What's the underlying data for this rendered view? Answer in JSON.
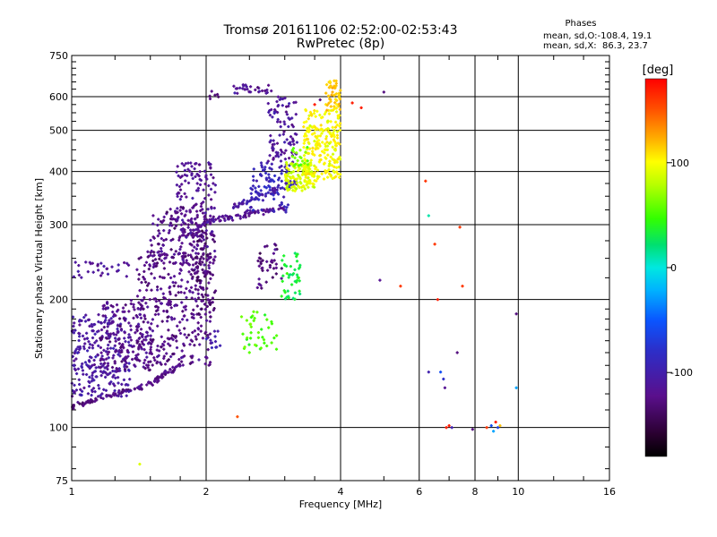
{
  "chart_data": {
    "type": "scatter",
    "title": "Tromsø 20161106 02:52:00-02:53:43",
    "subtitle": "RwPretec (8p)",
    "xlabel": "Frequency [MHz]",
    "ylabel": "Stationary phase Virtual Height [km]",
    "x_scale": "log",
    "y_scale": "log",
    "xlim": [
      1,
      16
    ],
    "ylim": [
      75,
      750
    ],
    "x_ticks": [
      1,
      2,
      4,
      6,
      8,
      10,
      16
    ],
    "x_tick_labels": [
      "1",
      "2",
      "4",
      "6",
      "8",
      "10",
      "16"
    ],
    "y_ticks": [
      75,
      100,
      200,
      300,
      400,
      500,
      600,
      750
    ],
    "y_tick_labels": [
      "75",
      "100",
      "200",
      "300",
      "400",
      "500",
      "600",
      "750"
    ],
    "grid": true,
    "x_gridlines": [
      2,
      4,
      6,
      8,
      10
    ],
    "y_gridlines": [
      100,
      200,
      300,
      400,
      500,
      600
    ],
    "phase_box": {
      "title": "Phases",
      "line1": "mean, sd,O:-108.4, 19.1",
      "line2": "mean, sd,X:  86.3, 23.7"
    },
    "colorbar": {
      "label": "[deg]",
      "range": [
        -180,
        180
      ],
      "ticks": [
        100,
        0,
        -100
      ],
      "tick_labels": [
        "100",
        "0",
        "-100"
      ],
      "colormap": "rainbow: black (-180) → purple → blue → cyan → green → yellow → orange → red (180)"
    },
    "traces": [
      {
        "kind": "curve",
        "phase": -130,
        "x0": 1.0,
        "x1": 1.45,
        "y0": 112,
        "y1": 125,
        "spread": 0.015,
        "count": 70
      },
      {
        "kind": "curve",
        "phase": -125,
        "x0": 1.45,
        "x1": 1.75,
        "y0": 125,
        "y1": 140,
        "spread": 0.02,
        "count": 50
      },
      {
        "kind": "cloud",
        "phase": -110,
        "xmin": 1.0,
        "xmax": 1.35,
        "ymin": 118,
        "ymax": 185,
        "count": 260
      },
      {
        "kind": "cloud",
        "phase": -125,
        "xmin": 1.15,
        "xmax": 1.5,
        "ymin": 135,
        "ymax": 200,
        "count": 160
      },
      {
        "kind": "cloud",
        "phase": -125,
        "xmin": 1.4,
        "xmax": 2.05,
        "ymin": 140,
        "ymax": 260,
        "count": 340
      },
      {
        "kind": "cloud",
        "phase": -125,
        "xmin": 1.5,
        "xmax": 2.1,
        "ymin": 240,
        "ymax": 330,
        "count": 160
      },
      {
        "kind": "cloud",
        "phase": -120,
        "xmin": 1.7,
        "xmax": 2.1,
        "ymin": 280,
        "ymax": 420,
        "count": 130
      },
      {
        "kind": "cloud",
        "phase": -135,
        "xmin": 1.85,
        "xmax": 2.1,
        "ymin": 180,
        "ymax": 290,
        "count": 90
      },
      {
        "kind": "cloud",
        "phase": -115,
        "xmin": 1.0,
        "xmax": 1.35,
        "ymin": 225,
        "ymax": 245,
        "count": 30
      },
      {
        "kind": "curve",
        "phase": -120,
        "x0": 2.0,
        "x1": 3.0,
        "y0": 305,
        "y1": 330,
        "spread": 0.02,
        "count": 80
      },
      {
        "kind": "curve",
        "phase": -105,
        "x0": 2.3,
        "x1": 3.2,
        "y0": 330,
        "y1": 380,
        "spread": 0.02,
        "count": 70
      },
      {
        "kind": "cloud",
        "phase": -90,
        "xmin": 2.5,
        "xmax": 3.1,
        "ymin": 320,
        "ymax": 420,
        "count": 90
      },
      {
        "kind": "cloud",
        "phase": -115,
        "xmin": 2.75,
        "xmax": 3.2,
        "ymin": 420,
        "ymax": 600,
        "count": 90
      },
      {
        "kind": "cloud",
        "phase": -120,
        "xmin": 2.3,
        "xmax": 2.8,
        "ymin": 610,
        "ymax": 640,
        "count": 30
      },
      {
        "kind": "cloud",
        "phase": -130,
        "xmin": 2.0,
        "xmax": 2.15,
        "ymin": 590,
        "ymax": 620,
        "count": 6
      },
      {
        "kind": "cloud",
        "phase": -130,
        "xmin": 2.6,
        "xmax": 3.0,
        "ymin": 210,
        "ymax": 270,
        "count": 40
      },
      {
        "kind": "cloud",
        "phase": -100,
        "xmin": 2.0,
        "xmax": 2.15,
        "ymin": 150,
        "ymax": 170,
        "count": 12
      },
      {
        "kind": "cloud",
        "phase": 30,
        "xmin": 2.95,
        "xmax": 3.25,
        "ymin": 200,
        "ymax": 260,
        "count": 45
      },
      {
        "kind": "cloud",
        "phase": 50,
        "xmin": 2.4,
        "xmax": 2.9,
        "ymin": 150,
        "ymax": 190,
        "count": 40
      },
      {
        "kind": "cloud",
        "phase": 90,
        "xmin": 3.0,
        "xmax": 3.5,
        "ymin": 360,
        "ymax": 420,
        "count": 120
      },
      {
        "kind": "cloud",
        "phase": 100,
        "xmin": 3.3,
        "xmax": 4.0,
        "ymin": 380,
        "ymax": 560,
        "count": 220
      },
      {
        "kind": "cloud",
        "phase": 115,
        "xmin": 3.7,
        "xmax": 4.0,
        "ymin": 550,
        "ymax": 660,
        "count": 50
      },
      {
        "kind": "cloud",
        "phase": 60,
        "xmin": 3.1,
        "xmax": 3.4,
        "ymin": 410,
        "ymax": 460,
        "count": 20
      }
    ],
    "isolated_points": [
      {
        "x": 1.42,
        "y": 82,
        "phase": 90
      },
      {
        "x": 2.35,
        "y": 106,
        "phase": 150
      },
      {
        "x": 3.5,
        "y": 575,
        "phase": 170
      },
      {
        "x": 3.6,
        "y": 590,
        "phase": -130
      },
      {
        "x": 4.25,
        "y": 580,
        "phase": 170
      },
      {
        "x": 4.45,
        "y": 565,
        "phase": 170
      },
      {
        "x": 5.0,
        "y": 615,
        "phase": -130
      },
      {
        "x": 4.9,
        "y": 222,
        "phase": -120
      },
      {
        "x": 5.45,
        "y": 215,
        "phase": 160
      },
      {
        "x": 6.2,
        "y": 380,
        "phase": 160
      },
      {
        "x": 6.3,
        "y": 315,
        "phase": 10
      },
      {
        "x": 6.3,
        "y": 135,
        "phase": -100
      },
      {
        "x": 6.5,
        "y": 270,
        "phase": 160
      },
      {
        "x": 6.6,
        "y": 200,
        "phase": 170
      },
      {
        "x": 6.7,
        "y": 135,
        "phase": -60
      },
      {
        "x": 6.8,
        "y": 130,
        "phase": -80
      },
      {
        "x": 6.85,
        "y": 124,
        "phase": -120
      },
      {
        "x": 6.9,
        "y": 100,
        "phase": 170
      },
      {
        "x": 7.0,
        "y": 101,
        "phase": 170
      },
      {
        "x": 7.1,
        "y": 100,
        "phase": -100
      },
      {
        "x": 7.3,
        "y": 150,
        "phase": -130
      },
      {
        "x": 7.4,
        "y": 296,
        "phase": 160
      },
      {
        "x": 7.5,
        "y": 215,
        "phase": 160
      },
      {
        "x": 7.9,
        "y": 99,
        "phase": -130
      },
      {
        "x": 8.5,
        "y": 100,
        "phase": 160
      },
      {
        "x": 8.7,
        "y": 101,
        "phase": -60
      },
      {
        "x": 8.8,
        "y": 98,
        "phase": -30
      },
      {
        "x": 8.9,
        "y": 103,
        "phase": 170
      },
      {
        "x": 9.0,
        "y": 100,
        "phase": -70
      },
      {
        "x": 9.1,
        "y": 101,
        "phase": 120
      },
      {
        "x": 9.9,
        "y": 124,
        "phase": -30
      },
      {
        "x": 9.9,
        "y": 185,
        "phase": -130
      }
    ]
  }
}
